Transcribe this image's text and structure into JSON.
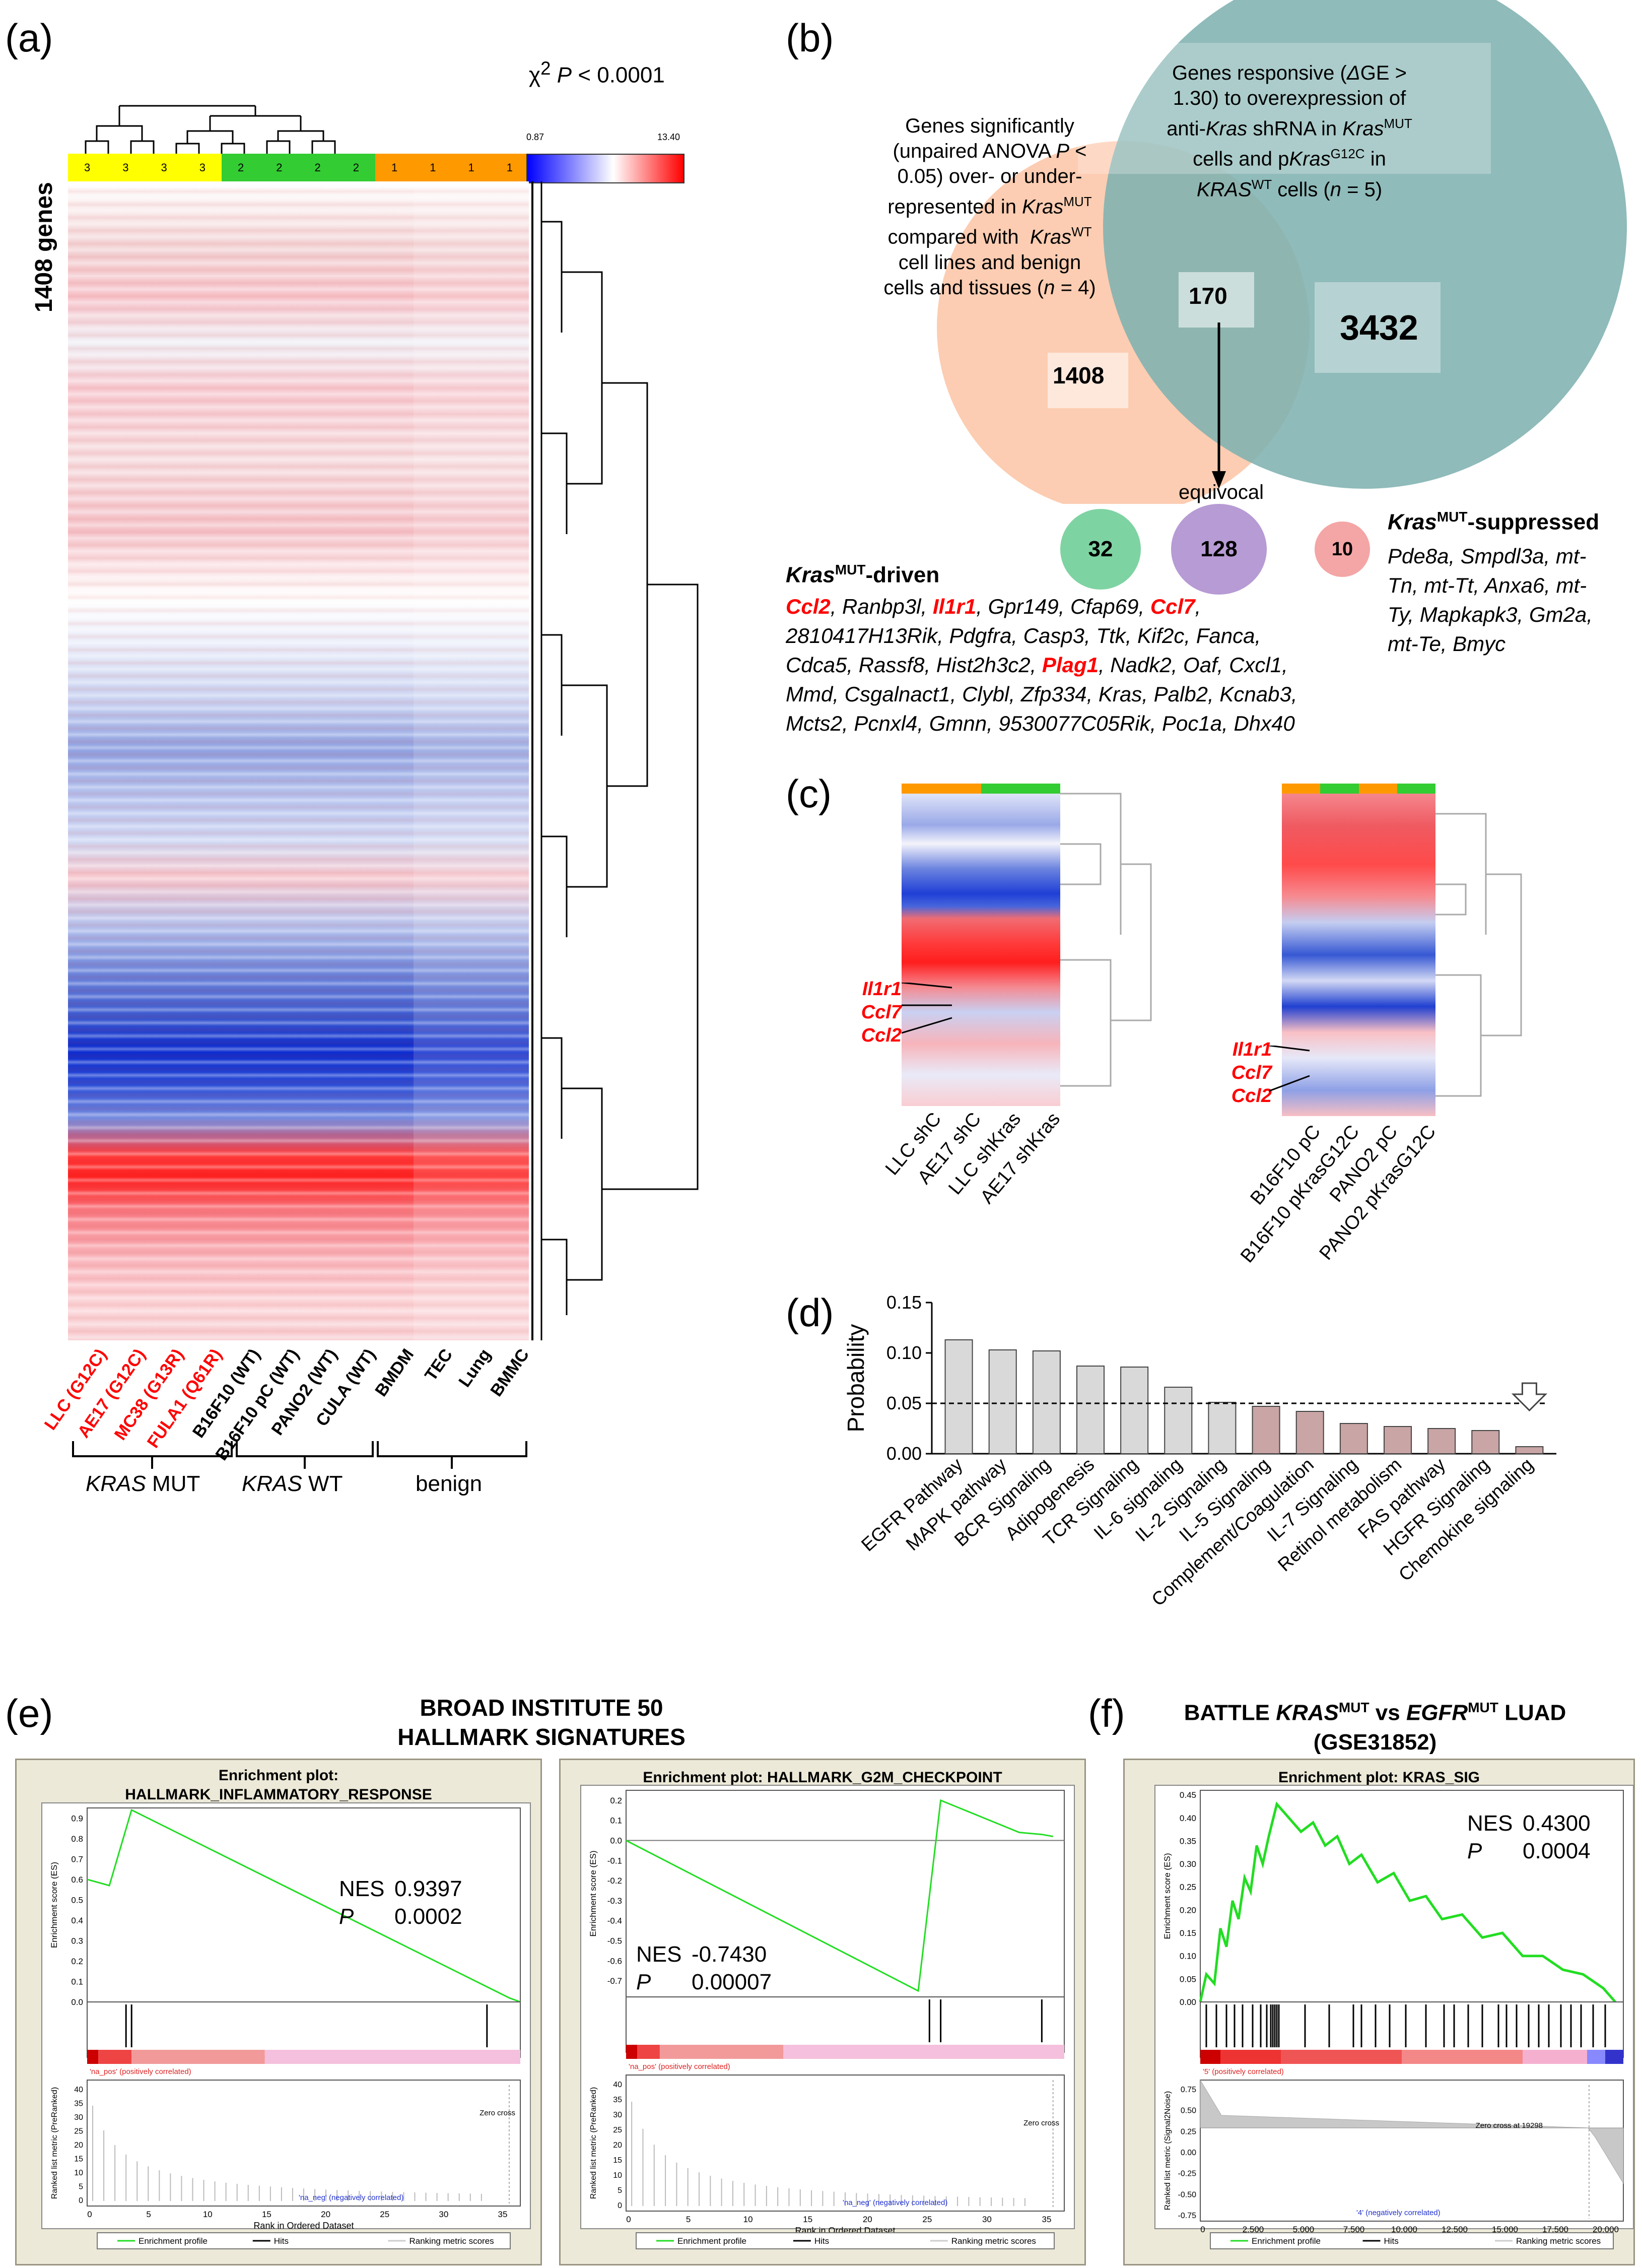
{
  "panels": {
    "a": "(a)",
    "b": "(b)",
    "c": "(c)",
    "d": "(d)",
    "e": "(e)",
    "f": "(f)"
  },
  "panel_a": {
    "chi_label": "χ² P < 0.0001",
    "scale_min": "0.87",
    "scale_max": "13.40",
    "genes_label": "1408 genes",
    "cluster_labels": [
      "3",
      "3",
      "3",
      "3",
      "2",
      "2",
      "2",
      "2",
      "1",
      "1",
      "1",
      "1"
    ],
    "samples": [
      {
        "label": "LLC (G12C)",
        "color": "#ff0000"
      },
      {
        "label": "AE17 (G12C)",
        "color": "#ff0000"
      },
      {
        "label": "MC38 (G13R)",
        "color": "#ff0000"
      },
      {
        "label": "FULA1 (Q61R)",
        "color": "#ff0000"
      },
      {
        "label": "B16F10 (WT)",
        "color": "#000000"
      },
      {
        "label": "B16F10 pC (WT)",
        "color": "#000000"
      },
      {
        "label": "PANO2 (WT)",
        "color": "#000000"
      },
      {
        "label": "CULA (WT)",
        "color": "#000000"
      },
      {
        "label": "BMDM",
        "color": "#000000"
      },
      {
        "label": "TEC",
        "color": "#000000"
      },
      {
        "label": "Lung",
        "color": "#000000"
      },
      {
        "label": "BMMC",
        "color": "#000000"
      }
    ],
    "group_kras": "KRAS",
    "group_mut": " MUT",
    "group_wt": " WT",
    "group_benign": "benign"
  },
  "panel_b": {
    "left_desc": "Genes significantly (unpaired ANOVA P < 0.05) over- or under-represented in Kras MUT compared with Kras WT cell lines and benign cells and tissues (n = 4)",
    "left_l1": "Genes significantly",
    "left_l2": "(unpaired ANOVA P <",
    "left_l3": "0.05) over- or under-",
    "left_l4": "represented in KrasMUT",
    "left_l5": "compared with  KrasWT",
    "left_l6": "cell lines and benign",
    "left_l7": "cells and tissues (n = 4)",
    "right_l1": "Genes responsive (ΔGE >",
    "right_l2": "1.30) to overexpression of",
    "right_l3": "anti-Kras shRNA in KrasMUT",
    "right_l4": "cells and pKrasG12C in",
    "right_l5": "KRASWT cells (n = 5)",
    "n_left": "1408",
    "n_overlap": "170",
    "n_right": "3432",
    "equivocal": "equivocal",
    "n_driven": "32",
    "n_equivocal": "128",
    "n_suppressed": "10",
    "suppressed_title_a": "Kras",
    "suppressed_title_sup": "MUT",
    "suppressed_title_b": "-suppressed",
    "suppressed_genes": [
      "Pde8a, Smpdl3a, mt-",
      "Tn, mt-Tt, Anxa6, mt-",
      "Ty, Mapkapk3, Gm2a,",
      "mt-Te, Bmyc"
    ],
    "driven_title_a": "Kras",
    "driven_title_sup": "MUT",
    "driven_title_b": "-driven",
    "driven_line1_parts": [
      "Ccl2",
      ", Ranbp3l, ",
      "Il1r1",
      ", Gpr149, Cfap69, ",
      "Ccl7",
      ","
    ],
    "driven_line2": "2810417H13Rik, Pdgfra, Casp3, Ttk, Kif2c, Fanca,",
    "driven_line3_parts": [
      "Cdca5, Rassf8, Hist2h3c2, ",
      "Plag1",
      ", Nadk2, Oaf, Cxcl1,"
    ],
    "driven_line4": "Mmd, Csgalnact1, Clybl, Zfp334, Kras, Palb2, Kcnab3,",
    "driven_line5": "Mcts2, Pcnxl4, Gmnn, 9530077C05Rik, Poc1a, Dhx40"
  },
  "panel_c": {
    "genes": [
      "Il1r1",
      "Ccl7",
      "Ccl2"
    ],
    "left_samples": [
      "LLC shC",
      "AE17 shC",
      "LLC shKras",
      "AE17 shKras"
    ],
    "right_samples": [
      "B16F10 pC",
      "B16F10 pKrasG12C",
      "PANO2 pC",
      "PANO2 pKrasG12C"
    ]
  },
  "panel_d": {
    "chart_data": {
      "type": "bar",
      "ylabel": "Probability",
      "ylim": [
        0,
        0.15
      ],
      "yticks": [
        "0.00",
        "0.05",
        "0.10",
        "0.15"
      ],
      "threshold": 0.05,
      "categories": [
        "EGFR Pathway",
        "MAPK pathway",
        "BCR Signaling",
        "Adipogenesis",
        "TCR Signaling",
        "IL-6 signaling",
        "IL-2 Signaling",
        "IL-5 Signaling",
        "Complement/Coagulation",
        "IL-7 Signaling",
        "Retinol metabolism",
        "FAS pathway",
        "HGFR Signaling",
        "Chemokine signaling"
      ],
      "values": [
        0.113,
        0.103,
        0.102,
        0.087,
        0.086,
        0.066,
        0.051,
        0.047,
        0.042,
        0.03,
        0.027,
        0.025,
        0.023,
        0.007
      ],
      "colors": [
        "#d9d9d9",
        "#d9d9d9",
        "#d9d9d9",
        "#d9d9d9",
        "#d9d9d9",
        "#d9d9d9",
        "#d9d9d9",
        "#c9a5a5",
        "#c9a5a5",
        "#c9a5a5",
        "#c9a5a5",
        "#c9a5a5",
        "#c9a5a5",
        "#c9a5a5"
      ]
    }
  },
  "panel_e": {
    "header_line1": "BROAD INSTITUTE 50",
    "header_line2": "HALLMARK SIGNATURES",
    "plot1": {
      "title_l1": "Enrichment plot:",
      "title_l2": "HALLMARK_INFLAMMATORY_RESPONSE",
      "nes_label": "NES",
      "nes": "0.9397",
      "p_label": "P",
      "p": "0.0002",
      "yticks": [
        "0.9",
        "0.8",
        "0.7",
        "0.6",
        "0.5",
        "0.4",
        "0.3",
        "0.2",
        "0.1",
        "0.0"
      ],
      "es_curve": {
        "type": "line",
        "x": [
          0,
          2,
          4,
          38,
          39
        ],
        "y": [
          0.6,
          0.57,
          0.94,
          0.02,
          0.0
        ]
      },
      "pos_label": "'na_pos' (positively correlated)",
      "neg_label": "'na_neg' (negatively correlated)",
      "zero_cross": "Zero cross",
      "metric_yticks": [
        "40",
        "35",
        "30",
        "25",
        "20",
        "15",
        "10",
        "5",
        "0"
      ],
      "xticks": [
        "0",
        "5",
        "10",
        "15",
        "20",
        "25",
        "30",
        "35"
      ],
      "xlabel": "Rank in Ordered Dataset",
      "ylabel_es": "Enrichment score (ES)",
      "ylabel_metric": "Ranked list metric (PreRanked)"
    },
    "plot2": {
      "title_l1": "Enrichment plot: HALLMARK_G2M_CHECKPOINT",
      "nes_label": "NES",
      "nes": "-0.7430",
      "p_label": "P",
      "p": "0.00007",
      "yticks": [
        "0.2",
        "0.1",
        "0.0",
        "-0.1",
        "-0.2",
        "-0.3",
        "-0.4",
        "-0.5",
        "-0.6",
        "-0.7"
      ],
      "es_curve": {
        "type": "line",
        "x": [
          0,
          26,
          28,
          35,
          37,
          38
        ],
        "y": [
          0.0,
          -0.75,
          0.2,
          0.04,
          0.03,
          0.02
        ]
      },
      "pos_label": "'na_pos' (positively correlated)",
      "neg_label": "'na_neg' (negatively correlated)",
      "zero_cross": "Zero cross",
      "metric_yticks": [
        "40",
        "35",
        "30",
        "25",
        "20",
        "15",
        "10",
        "5",
        "0"
      ],
      "xticks": [
        "0",
        "5",
        "10",
        "15",
        "20",
        "25",
        "30",
        "35"
      ],
      "xlabel": "Rank in Ordered Dataset",
      "ylabel_es": "Enrichment score (ES)",
      "ylabel_metric": "Ranked list metric (PreRanked)"
    },
    "legend": [
      "Enrichment profile",
      "Hits",
      "Ranking metric scores"
    ]
  },
  "panel_f": {
    "header_a": "BATTLE ",
    "header_kras": "KRAS",
    "header_mut1": "MUT",
    "header_vs": " vs ",
    "header_egfr": "EGFR",
    "header_mut2": "MUT",
    "header_luad": " LUAD",
    "header_line2": "(GSE31852)",
    "title": "Enrichment plot: KRAS_SIG",
    "nes_label": "NES",
    "nes": "0.4300",
    "p_label": "P",
    "p": "0.0004",
    "yticks": [
      "0.45",
      "0.40",
      "0.35",
      "0.30",
      "0.25",
      "0.20",
      "0.15",
      "0.10",
      "0.05",
      "0.00"
    ],
    "metric_yticks": [
      "0.75",
      "0.50",
      "0.25",
      "0.00",
      "-0.25",
      "-0.50",
      "-0.75"
    ],
    "xticks": [
      "0",
      "2,500",
      "5,000",
      "7,500",
      "10,000",
      "12,500",
      "15,000",
      "17,500",
      "20,000"
    ],
    "pos_label": "'5' (positively correlated)",
    "neg_label": "'4' (negatively correlated)",
    "zero_cross": "Zero cross at 19298",
    "xlabel": "Rank in Ordered Dataset",
    "ylabel_es": "Enrichment score (ES)",
    "ylabel_metric": "Ranked list metric (Signal2Noise)",
    "legend": [
      "Enrichment profile",
      "Hits",
      "Ranking metric scores"
    ]
  }
}
